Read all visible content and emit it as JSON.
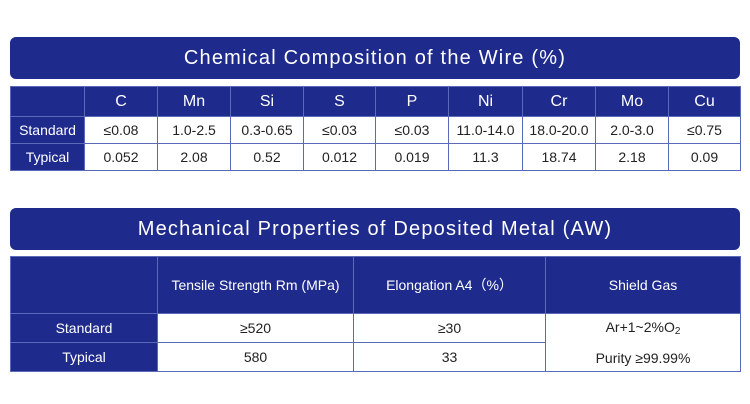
{
  "chemical": {
    "title": "Chemical Composition of the Wire (%)",
    "headers": [
      "C",
      "Mn",
      "Si",
      "S",
      "P",
      "Ni",
      "Cr",
      "Mo",
      "Cu"
    ],
    "rows": [
      {
        "label": "Standard",
        "values": [
          "≤0.08",
          "1.0-2.5",
          "0.3-0.65",
          "≤0.03",
          "≤0.03",
          "11.0-14.0",
          "18.0-20.0",
          "2.0-3.0",
          "≤0.75"
        ]
      },
      {
        "label": "Typical",
        "values": [
          "0.052",
          "2.08",
          "0.52",
          "0.012",
          "0.019",
          "11.3",
          "18.74",
          "2.18",
          "0.09"
        ]
      }
    ]
  },
  "mechanical": {
    "title": "Mechanical Properties of Deposited Metal (AW)",
    "headers": [
      "Tensile Strength Rm (MPa)",
      "Elongation  A4（%）",
      "Shield Gas"
    ],
    "rows": [
      {
        "label": "Standard",
        "values": [
          "≥520",
          "≥30"
        ]
      },
      {
        "label": "Typical",
        "values": [
          "580",
          "33"
        ]
      }
    ],
    "shield_gas": {
      "mix_prefix": "Ar+1~2%O",
      "mix_sub": "2",
      "purity": "Purity ≥99.99%"
    }
  }
}
